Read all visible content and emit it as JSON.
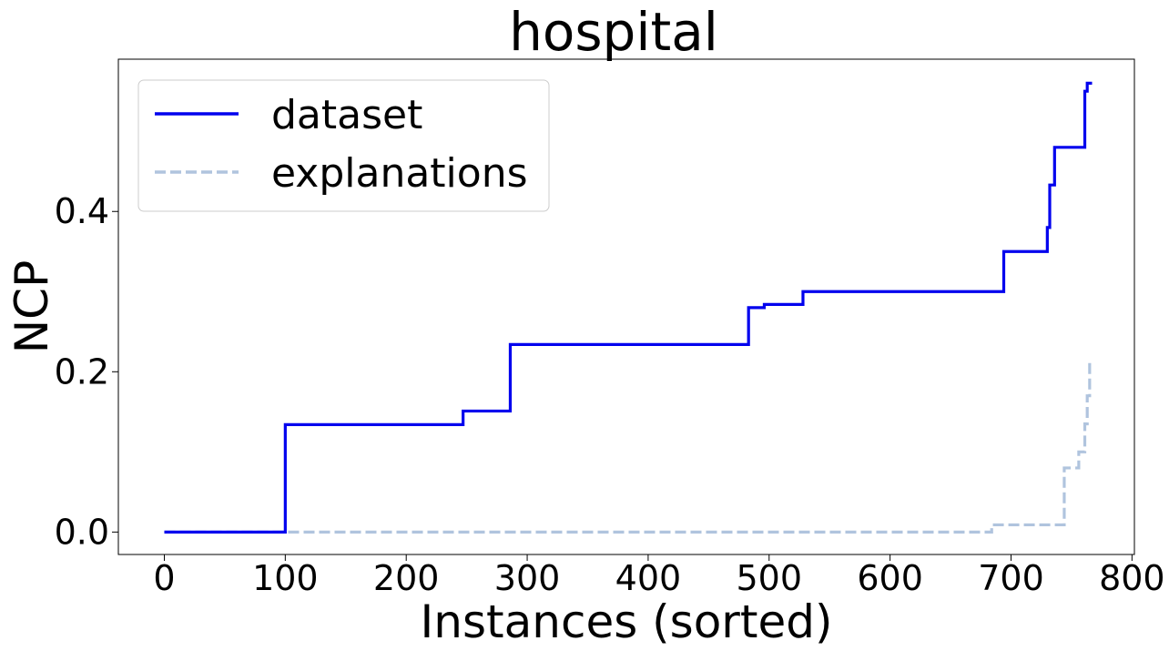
{
  "chart_data": {
    "type": "line",
    "title": "hospital",
    "xlabel": "Instances (sorted)",
    "ylabel": "NCP",
    "xlim": [
      -38,
      802
    ],
    "ylim": [
      -0.028,
      0.59
    ],
    "xticks": [
      0,
      100,
      200,
      300,
      400,
      500,
      600,
      700,
      800
    ],
    "xtick_labels": [
      "0",
      "100",
      "200",
      "300",
      "400",
      "500",
      "600",
      "700",
      "800"
    ],
    "yticks": [
      0.0,
      0.2,
      0.4
    ],
    "ytick_labels": [
      "0.0",
      "0.2",
      "0.4"
    ],
    "grid": false,
    "legend_position": "upper left",
    "series": [
      {
        "name": "dataset",
        "style": "solid",
        "color": "#0000ee",
        "x": [
          0,
          100,
          100,
          247,
          247,
          286,
          286,
          483,
          483,
          496,
          496,
          528,
          528,
          694,
          694,
          730,
          730,
          732,
          732,
          736,
          736,
          740,
          740,
          761,
          761,
          763,
          763,
          767
        ],
        "y": [
          0.0,
          0.0,
          0.134,
          0.134,
          0.151,
          0.151,
          0.234,
          0.234,
          0.28,
          0.28,
          0.284,
          0.284,
          0.3,
          0.3,
          0.35,
          0.35,
          0.38,
          0.38,
          0.433,
          0.433,
          0.48,
          0.48,
          0.48,
          0.48,
          0.55,
          0.55,
          0.56,
          0.56
        ]
      },
      {
        "name": "explanations",
        "style": "dashed",
        "color": "#b0c4de",
        "x": [
          0,
          684,
          684,
          744,
          744,
          749,
          749,
          756,
          756,
          761,
          761,
          763,
          763,
          765,
          765
        ],
        "y": [
          0.0,
          0.0,
          0.009,
          0.009,
          0.08,
          0.08,
          0.08,
          0.08,
          0.1,
          0.1,
          0.135,
          0.135,
          0.17,
          0.17,
          0.215
        ]
      }
    ]
  }
}
